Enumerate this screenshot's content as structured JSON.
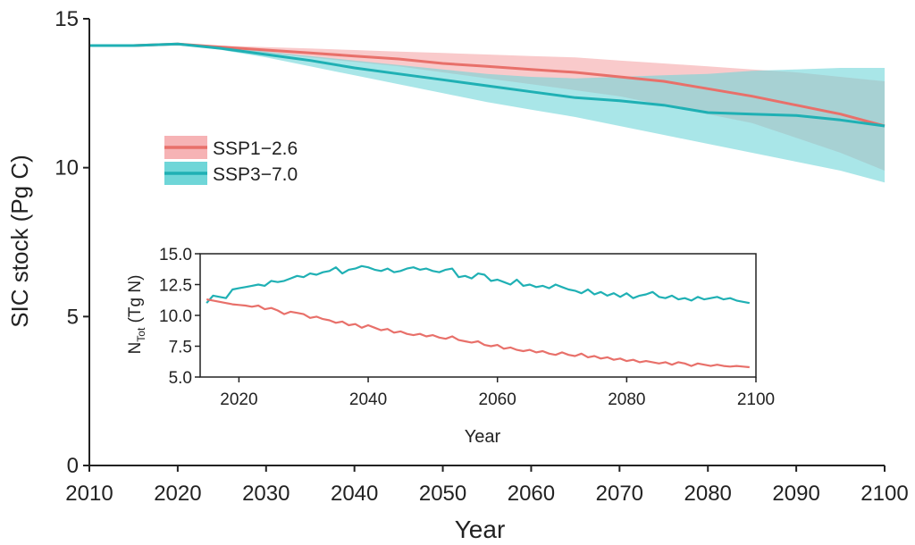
{
  "chart_data": [
    {
      "type": "line",
      "xlabel": "Year",
      "ylabel": "SIC stock (Pg C)",
      "xlim": [
        2010,
        2100
      ],
      "ylim": [
        0,
        15
      ],
      "xticks": [
        2010,
        2020,
        2030,
        2040,
        2050,
        2060,
        2070,
        2080,
        2090,
        2100
      ],
      "yticks": [
        0,
        5,
        10,
        15
      ],
      "xtick_labels": [
        "2010",
        "2020",
        "2030",
        "2040",
        "2050",
        "2060",
        "2070",
        "2080",
        "2090",
        "2100"
      ],
      "ytick_labels": [
        "0",
        "5",
        "10",
        "15"
      ],
      "legend_position": "center-left",
      "grid": false,
      "series": [
        {
          "name": "SSP1−2.6",
          "color": "#e8706a",
          "band_color": "#f6b3b5",
          "x": [
            2010,
            2015,
            2020,
            2025,
            2030,
            2035,
            2040,
            2045,
            2050,
            2055,
            2060,
            2065,
            2070,
            2075,
            2080,
            2085,
            2090,
            2095,
            2100
          ],
          "values": [
            14.1,
            14.1,
            14.15,
            14.05,
            13.95,
            13.85,
            13.75,
            13.65,
            13.5,
            13.4,
            13.3,
            13.2,
            13.05,
            12.9,
            12.65,
            12.4,
            12.1,
            11.8,
            11.4
          ],
          "lower": [
            14.1,
            14.1,
            14.15,
            14.0,
            13.85,
            13.7,
            13.55,
            13.4,
            13.2,
            13.0,
            12.8,
            12.6,
            12.4,
            12.1,
            11.8,
            11.5,
            11.0,
            10.5,
            9.9
          ],
          "upper": [
            14.1,
            14.1,
            14.15,
            14.1,
            14.05,
            14.0,
            13.95,
            13.9,
            13.85,
            13.8,
            13.75,
            13.7,
            13.6,
            13.5,
            13.4,
            13.3,
            13.2,
            13.05,
            12.9
          ]
        },
        {
          "name": "SSP3−7.0",
          "color": "#1fb0b4",
          "band_color": "#6fd6d8",
          "x": [
            2010,
            2015,
            2020,
            2025,
            2030,
            2035,
            2040,
            2045,
            2050,
            2055,
            2060,
            2065,
            2070,
            2075,
            2080,
            2085,
            2090,
            2095,
            2100
          ],
          "values": [
            14.1,
            14.1,
            14.15,
            14.0,
            13.8,
            13.6,
            13.35,
            13.15,
            12.95,
            12.75,
            12.55,
            12.35,
            12.25,
            12.1,
            11.85,
            11.8,
            11.75,
            11.6,
            11.4
          ],
          "lower": [
            14.1,
            14.1,
            14.15,
            13.95,
            13.7,
            13.4,
            13.1,
            12.8,
            12.5,
            12.2,
            11.95,
            11.7,
            11.4,
            11.1,
            10.8,
            10.5,
            10.2,
            9.9,
            9.5
          ],
          "upper": [
            14.1,
            14.1,
            14.15,
            14.05,
            13.9,
            13.75,
            13.6,
            13.45,
            13.3,
            13.15,
            13.05,
            13.0,
            13.05,
            13.1,
            13.15,
            13.25,
            13.3,
            13.35,
            13.35
          ]
        }
      ]
    },
    {
      "type": "line",
      "xlabel": "Year",
      "ylabel_main": "N",
      "ylabel_sub": "Tot",
      "ylabel_unit": " (Tg N)",
      "xlim": [
        2014,
        2100
      ],
      "ylim": [
        5,
        15
      ],
      "xticks": [
        2020,
        2040,
        2060,
        2080,
        2100
      ],
      "yticks": [
        5,
        7.5,
        10,
        12.5,
        15
      ],
      "xtick_labels": [
        "2020",
        "2040",
        "2060",
        "2080",
        "2100"
      ],
      "ytick_labels": [
        "5.0",
        "7.5",
        "10.0",
        "12.5",
        "15.0"
      ],
      "grid": false,
      "series": [
        {
          "color": "#1fb0b4",
          "x": [
            2015,
            2016,
            2017,
            2018,
            2019,
            2020,
            2021,
            2022,
            2023,
            2024,
            2025,
            2026,
            2027,
            2028,
            2029,
            2030,
            2031,
            2032,
            2033,
            2034,
            2035,
            2036,
            2037,
            2038,
            2039,
            2040,
            2041,
            2042,
            2043,
            2044,
            2045,
            2046,
            2047,
            2048,
            2049,
            2050,
            2051,
            2052,
            2053,
            2054,
            2055,
            2056,
            2057,
            2058,
            2059,
            2060,
            2061,
            2062,
            2063,
            2064,
            2065,
            2066,
            2067,
            2068,
            2069,
            2070,
            2071,
            2072,
            2073,
            2074,
            2075,
            2076,
            2077,
            2078,
            2079,
            2080,
            2081,
            2082,
            2083,
            2084,
            2085,
            2086,
            2087,
            2088,
            2089,
            2090,
            2091,
            2092,
            2093,
            2094,
            2095,
            2096,
            2097,
            2098,
            2099
          ],
          "values": [
            11.0,
            11.6,
            11.5,
            11.4,
            12.1,
            12.2,
            12.3,
            12.4,
            12.5,
            12.4,
            12.8,
            12.7,
            12.8,
            13.0,
            13.2,
            13.1,
            13.4,
            13.3,
            13.5,
            13.6,
            13.9,
            13.4,
            13.7,
            13.8,
            14.0,
            13.9,
            13.7,
            13.6,
            13.8,
            13.5,
            13.6,
            13.8,
            13.9,
            13.7,
            13.8,
            13.6,
            13.5,
            13.7,
            13.8,
            13.1,
            13.2,
            13.0,
            13.4,
            13.3,
            12.8,
            12.9,
            12.7,
            12.5,
            12.9,
            12.4,
            12.5,
            12.3,
            12.4,
            12.2,
            12.5,
            12.3,
            12.1,
            12.0,
            11.8,
            12.1,
            11.7,
            11.9,
            11.6,
            11.8,
            11.5,
            11.8,
            11.4,
            11.6,
            11.7,
            11.9,
            11.5,
            11.4,
            11.6,
            11.3,
            11.4,
            11.2,
            11.5,
            11.3,
            11.4,
            11.5,
            11.3,
            11.4,
            11.2,
            11.1,
            11.0
          ]
        },
        {
          "color": "#e8706a",
          "x": [
            2015,
            2016,
            2017,
            2018,
            2019,
            2020,
            2021,
            2022,
            2023,
            2024,
            2025,
            2026,
            2027,
            2028,
            2029,
            2030,
            2031,
            2032,
            2033,
            2034,
            2035,
            2036,
            2037,
            2038,
            2039,
            2040,
            2041,
            2042,
            2043,
            2044,
            2045,
            2046,
            2047,
            2048,
            2049,
            2050,
            2051,
            2052,
            2053,
            2054,
            2055,
            2056,
            2057,
            2058,
            2059,
            2060,
            2061,
            2062,
            2063,
            2064,
            2065,
            2066,
            2067,
            2068,
            2069,
            2070,
            2071,
            2072,
            2073,
            2074,
            2075,
            2076,
            2077,
            2078,
            2079,
            2080,
            2081,
            2082,
            2083,
            2084,
            2085,
            2086,
            2087,
            2088,
            2089,
            2090,
            2091,
            2092,
            2093,
            2094,
            2095,
            2096,
            2097,
            2098,
            2099
          ],
          "values": [
            11.3,
            11.2,
            11.1,
            11.0,
            10.9,
            10.85,
            10.8,
            10.7,
            10.8,
            10.5,
            10.6,
            10.4,
            10.1,
            10.3,
            10.2,
            10.1,
            9.8,
            9.9,
            9.7,
            9.6,
            9.4,
            9.5,
            9.2,
            9.3,
            9.0,
            9.2,
            9.0,
            8.8,
            8.9,
            8.6,
            8.7,
            8.5,
            8.4,
            8.5,
            8.3,
            8.4,
            8.2,
            8.1,
            8.3,
            8.0,
            7.9,
            7.8,
            7.9,
            7.6,
            7.5,
            7.6,
            7.3,
            7.4,
            7.2,
            7.1,
            7.2,
            7.0,
            7.1,
            6.9,
            6.8,
            7.0,
            6.8,
            6.7,
            6.9,
            6.6,
            6.7,
            6.5,
            6.6,
            6.4,
            6.5,
            6.3,
            6.4,
            6.2,
            6.3,
            6.2,
            6.1,
            6.2,
            6.0,
            6.2,
            6.1,
            5.9,
            6.1,
            6.0,
            5.9,
            6.0,
            5.9,
            5.85,
            5.9,
            5.85,
            5.8
          ]
        }
      ]
    }
  ]
}
